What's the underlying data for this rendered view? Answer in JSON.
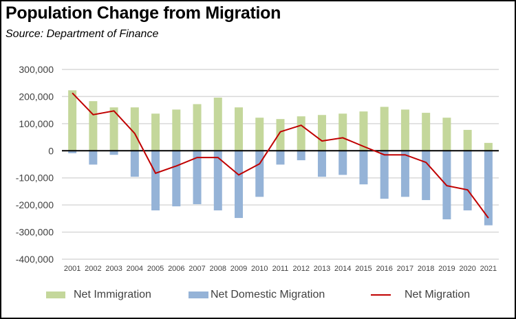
{
  "title": "Population Change from Migration",
  "subtitle": "Source:  Department of Finance",
  "colors": {
    "immigration": "#C4D79B",
    "domestic": "#95B3D7",
    "net": "#C00000",
    "grid": "#D9D9D9",
    "zero_line": "#000000"
  },
  "legend": {
    "immigration": "Net Immigration",
    "domestic": "Net Domestic Migration",
    "net": "Net Migration"
  },
  "chart_data": {
    "type": "bar",
    "title": "Population Change from Migration",
    "subtitle": "Source:  Department of Finance",
    "xlabel": "",
    "ylabel": "",
    "ylim": [
      -400000,
      300000
    ],
    "yticks": [
      300000,
      200000,
      100000,
      0,
      -100000,
      -200000,
      -300000,
      -400000
    ],
    "ytick_labels": [
      "300,000",
      "200,000",
      "100,000",
      "0",
      "-100,000",
      "-200,000",
      "-300,000",
      "-400,000"
    ],
    "grid": true,
    "legend_position": "bottom",
    "categories": [
      "2001",
      "2002",
      "2003",
      "2004",
      "2005",
      "2006",
      "2007",
      "2008",
      "2009",
      "2010",
      "2011",
      "2012",
      "2013",
      "2014",
      "2015",
      "2016",
      "2017",
      "2018",
      "2019",
      "2020",
      "2021"
    ],
    "series": [
      {
        "name": "Net Immigration",
        "type": "bar",
        "values": [
          223000,
          183000,
          160000,
          160000,
          137000,
          152000,
          172000,
          196000,
          160000,
          122000,
          117000,
          127000,
          132000,
          137000,
          145000,
          162000,
          152000,
          140000,
          122000,
          77000,
          29000
        ]
      },
      {
        "name": "Net Domestic Migration",
        "type": "bar",
        "values": [
          -9000,
          -51000,
          -15000,
          -96000,
          -220000,
          -205000,
          -197000,
          -220000,
          -248000,
          -170000,
          -51000,
          -35000,
          -96000,
          -89000,
          -124000,
          -177000,
          -170000,
          -182000,
          -253000,
          -220000,
          -275000
        ]
      },
      {
        "name": "Net Migration",
        "type": "line",
        "values": [
          213000,
          133000,
          147000,
          64000,
          -83000,
          -56000,
          -25000,
          -25000,
          -89000,
          -48000,
          70000,
          94000,
          36000,
          48000,
          16000,
          -15000,
          -15000,
          -43000,
          -129000,
          -144000,
          -248000
        ]
      }
    ]
  }
}
